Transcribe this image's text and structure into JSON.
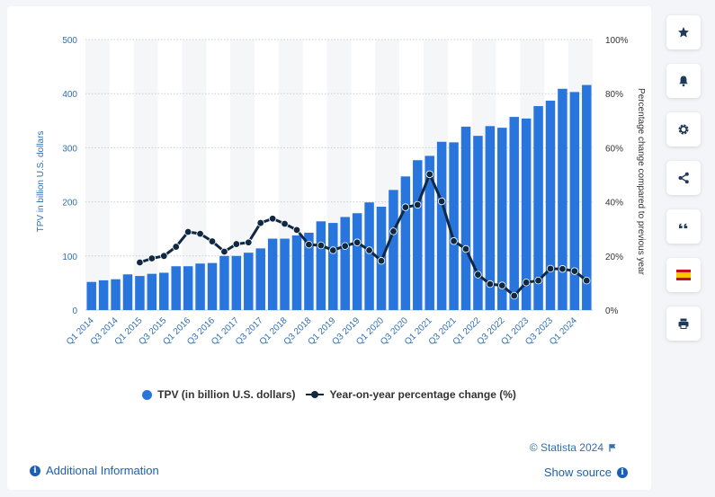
{
  "chart_data": {
    "type": "bar",
    "categories": [
      "Q1 2014",
      "Q2 2014",
      "Q3 2014",
      "Q4 2014",
      "Q1 2015",
      "Q2 2015",
      "Q3 2015",
      "Q4 2015",
      "Q1 2016",
      "Q2 2016",
      "Q3 2016",
      "Q4 2016",
      "Q1 2017",
      "Q2 2017",
      "Q3 2017",
      "Q4 2017",
      "Q1 2018",
      "Q2 2018",
      "Q3 2018",
      "Q4 2018",
      "Q1 2019",
      "Q2 2019",
      "Q3 2019",
      "Q4 2019",
      "Q1 2020",
      "Q2 2020",
      "Q3 2020",
      "Q4 2020",
      "Q1 2021",
      "Q2 2021",
      "Q3 2021",
      "Q4 2021",
      "Q1 2022",
      "Q2 2022",
      "Q3 2022",
      "Q4 2022",
      "Q1 2023",
      "Q2 2023",
      "Q3 2023",
      "Q4 2023",
      "Q1 2024",
      "Q2 2024"
    ],
    "tick_labels": [
      "Q1 2014",
      "Q3 2014",
      "Q1 2015",
      "Q3 2015",
      "Q1 2016",
      "Q3 2016",
      "Q1 2017",
      "Q3 2017",
      "Q1 2018",
      "Q3 2018",
      "Q1 2019",
      "Q3 2019",
      "Q1 2020",
      "Q3 2020",
      "Q1 2021",
      "Q3 2021",
      "Q1 2022",
      "Q3 2022",
      "Q1 2023",
      "Q3 2023",
      "Q1 2024"
    ],
    "series": [
      {
        "name": "TPV (in billion U.S. dollars)",
        "type": "bar",
        "axis": "left",
        "color": "#2876dd",
        "values": [
          52,
          55,
          57,
          66,
          63,
          67,
          69,
          81,
          81,
          86,
          87,
          100,
          100,
          106,
          114,
          132,
          132,
          138,
          143,
          164,
          161,
          172,
          179,
          199,
          191,
          222,
          247,
          277,
          285,
          311,
          310,
          339,
          322,
          340,
          337,
          357,
          354,
          377,
          387,
          409,
          403,
          416
        ]
      },
      {
        "name": "Year-on-year percentage change (%)",
        "type": "line",
        "axis": "right",
        "color": "#0f2942",
        "values": [
          null,
          null,
          null,
          null,
          17.6,
          19.1,
          20.0,
          23.4,
          28.9,
          28.2,
          25.4,
          21.6,
          24.4,
          25.0,
          32.2,
          33.8,
          31.9,
          29.6,
          24.2,
          23.9,
          22.1,
          23.7,
          25.0,
          22.1,
          18.2,
          29.1,
          38.0,
          38.9,
          50.2,
          40.2,
          25.5,
          22.6,
          13.1,
          9.6,
          9.1,
          5.3,
          10.2,
          10.9,
          15.3,
          15.2,
          14.4,
          10.9
        ]
      }
    ],
    "ylabel": "TPV in billion U.S. dollars",
    "ylim": [
      0,
      500
    ],
    "yticks": [
      "0",
      "100",
      "200",
      "300",
      "400",
      "500"
    ],
    "y2label": "Percentage change compared to previous year",
    "y2lim": [
      0,
      100
    ],
    "y2ticks": [
      "0%",
      "20%",
      "40%",
      "60%",
      "80%",
      "100%"
    ],
    "grid": true,
    "legend_position": "bottom"
  },
  "ui": {
    "colors": {
      "bar": "#2876dd",
      "line": "#0f2942",
      "accent": "#1a5fb4",
      "flag_red": "#c60b1e",
      "flag_yellow": "#ffc400"
    },
    "toolbar_icons": [
      "star-icon",
      "bell-icon",
      "gear-icon",
      "share-icon",
      "quote-icon",
      "flag-icon",
      "print-icon"
    ],
    "credits": "© Statista 2024",
    "additional_info": "Additional Information",
    "show_source": "Show source",
    "info_glyph": "i"
  }
}
